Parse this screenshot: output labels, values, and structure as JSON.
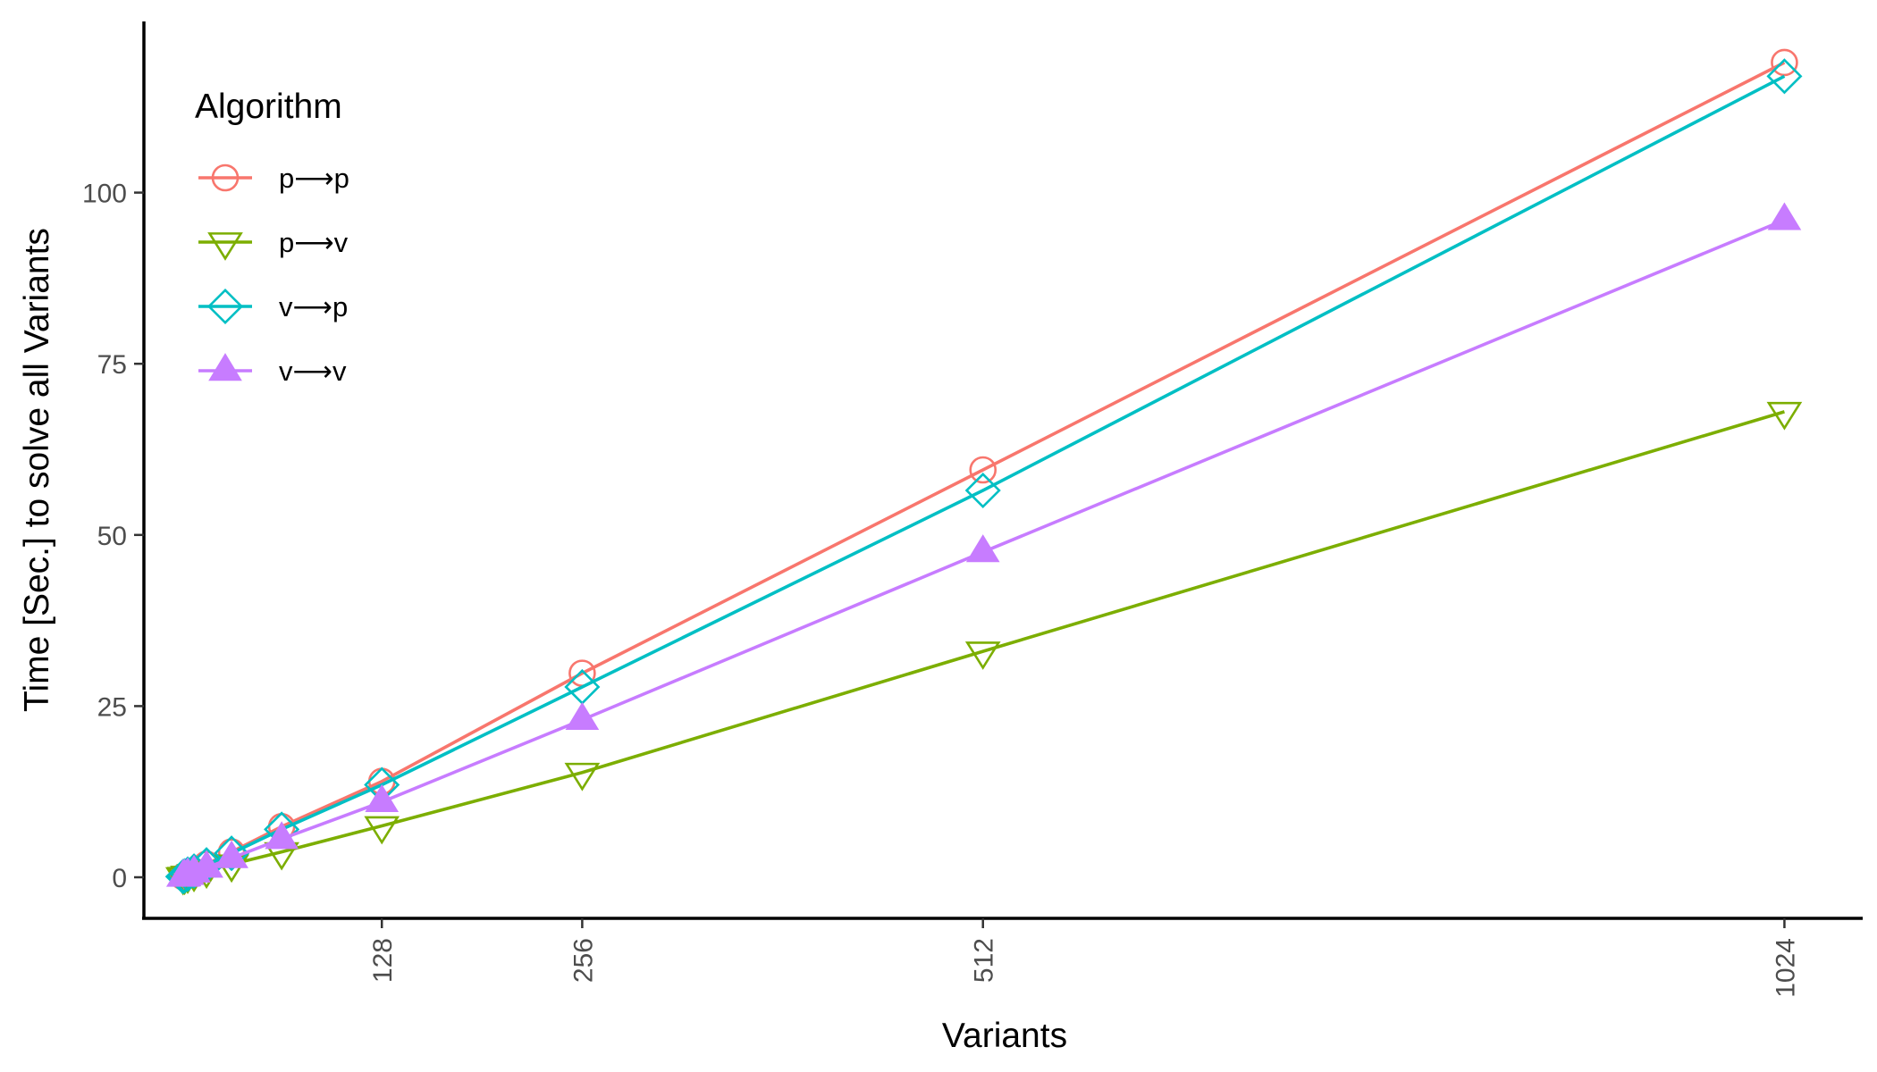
{
  "chart_data": {
    "type": "line",
    "xlabel": "Variants",
    "ylabel": "Time [Sec.] to solve all Variants",
    "x_ticks": [
      "128",
      "256",
      "512",
      "1024"
    ],
    "x_tick_values": [
      128,
      256,
      512,
      1024
    ],
    "y_ticks": [
      "0",
      "25",
      "50",
      "75",
      "100"
    ],
    "y_tick_values": [
      0,
      25,
      50,
      75,
      100
    ],
    "xlim": [
      -24,
      1074
    ],
    "ylim": [
      -6,
      125
    ],
    "grid": false,
    "legend": {
      "title": "Algorithm",
      "placement": "top-left"
    },
    "x": [
      1,
      2,
      4,
      8,
      16,
      32,
      64,
      128,
      256,
      512,
      1024
    ],
    "series": [
      {
        "name": "p⟶p",
        "color": "#F8766D",
        "marker": "circle-open",
        "values": [
          0.1,
          0.2,
          0.5,
          0.9,
          1.9,
          3.7,
          7.4,
          14.0,
          29.8,
          59.5,
          119.0
        ]
      },
      {
        "name": "p⟶v",
        "color": "#7CAE00",
        "marker": "triangle-down-open",
        "values": [
          0.05,
          0.1,
          0.25,
          0.5,
          1.0,
          1.9,
          3.7,
          7.5,
          15.3,
          33.0,
          68.0
        ]
      },
      {
        "name": "v⟶p",
        "color": "#00BFC4",
        "marker": "diamond-open",
        "values": [
          0.1,
          0.2,
          0.45,
          0.9,
          1.8,
          3.5,
          7.0,
          13.5,
          27.8,
          56.5,
          117.0
        ]
      },
      {
        "name": "v⟶v",
        "color": "#C77CFF",
        "marker": "triangle-up-filled",
        "values": [
          0.08,
          0.15,
          0.35,
          0.7,
          1.4,
          2.8,
          5.6,
          11.0,
          23.0,
          47.5,
          96.0
        ]
      }
    ]
  }
}
